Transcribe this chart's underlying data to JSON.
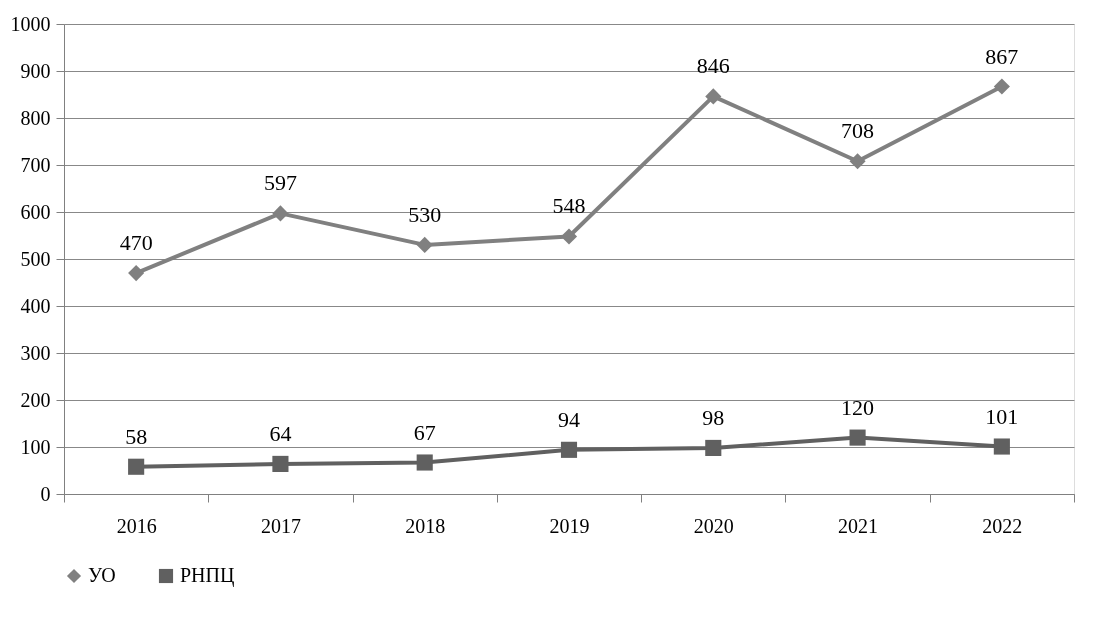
{
  "chart_data": {
    "type": "line",
    "categories": [
      "2016",
      "2017",
      "2018",
      "2019",
      "2020",
      "2021",
      "2022"
    ],
    "series": [
      {
        "name": "УО",
        "color": "#808080",
        "marker": "diamond",
        "values": [
          470,
          597,
          530,
          548,
          846,
          708,
          867
        ]
      },
      {
        "name": "РНПЦ",
        "color": "#606060",
        "marker": "square",
        "values": [
          58,
          64,
          67,
          94,
          98,
          120,
          101
        ]
      }
    ],
    "ylim": [
      0,
      1000
    ],
    "yticks": [
      0,
      100,
      200,
      300,
      400,
      500,
      600,
      700,
      800,
      900,
      1000
    ],
    "grid": "y",
    "legend": "bottom",
    "data_labels": true,
    "line_style": "solid"
  }
}
